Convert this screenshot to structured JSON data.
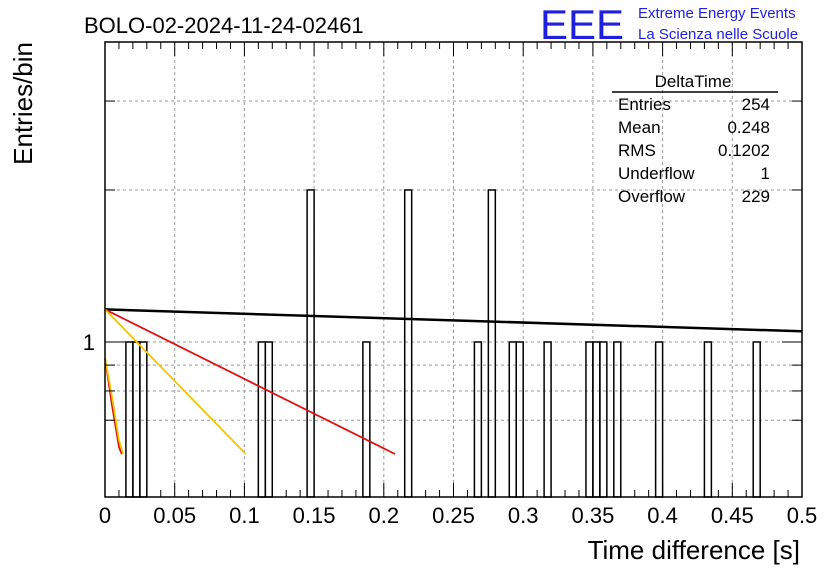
{
  "header": {
    "title": "BOLO-02-2024-11-24-02461",
    "logo_text": "EEE",
    "logo_line1": "Extreme Energy Events",
    "logo_line2": "La Scienza nelle Scuole"
  },
  "stats": {
    "title": "DeltaTime",
    "rows": [
      {
        "label": "Entries",
        "value": "254"
      },
      {
        "label": "Mean",
        "value": "0.248"
      },
      {
        "label": "RMS",
        "value": "0.1202"
      },
      {
        "label": "Underflow",
        "value": "1"
      },
      {
        "label": "Overflow",
        "value": "229"
      }
    ]
  },
  "chart_data": {
    "type": "bar",
    "title": "BOLO-02-2024-11-24-02461",
    "xlabel": "Time difference [s]",
    "ylabel": "Entries/bin",
    "xlim": [
      0,
      0.5
    ],
    "log_y": true,
    "grid": true,
    "x_ticks": [
      "0",
      "0.05",
      "0.1",
      "0.15",
      "0.2",
      "0.25",
      "0.3",
      "0.35",
      "0.4",
      "0.45",
      "0.5"
    ],
    "y_ticks": [
      "1"
    ],
    "bin_width": 0.005,
    "bins": [
      {
        "x": 0.015,
        "count": 1
      },
      {
        "x": 0.02,
        "count": 1
      },
      {
        "x": 0.025,
        "count": 1
      },
      {
        "x": 0.11,
        "count": 1
      },
      {
        "x": 0.115,
        "count": 1
      },
      {
        "x": 0.145,
        "count": 2
      },
      {
        "x": 0.185,
        "count": 1
      },
      {
        "x": 0.215,
        "count": 2
      },
      {
        "x": 0.265,
        "count": 1
      },
      {
        "x": 0.275,
        "count": 2
      },
      {
        "x": 0.29,
        "count": 1
      },
      {
        "x": 0.295,
        "count": 1
      },
      {
        "x": 0.315,
        "count": 1
      },
      {
        "x": 0.345,
        "count": 1
      },
      {
        "x": 0.35,
        "count": 1
      },
      {
        "x": 0.355,
        "count": 1
      },
      {
        "x": 0.365,
        "count": 1
      },
      {
        "x": 0.395,
        "count": 1
      },
      {
        "x": 0.43,
        "count": 1
      },
      {
        "x": 0.465,
        "count": 1
      }
    ],
    "fits": [
      {
        "color": "#000000",
        "points": [
          [
            0.0,
            1.16
          ],
          [
            0.5,
            1.05
          ]
        ]
      },
      {
        "color": "#e01010",
        "points": [
          [
            0.0,
            1.16
          ],
          [
            0.208,
            0.6
          ]
        ]
      },
      {
        "color": "#f5c400",
        "points": [
          [
            0.0,
            1.16
          ],
          [
            0.101,
            0.6
          ]
        ]
      },
      {
        "color": "#e01010",
        "points": [
          [
            0.0,
            0.93
          ],
          [
            0.005,
            0.75
          ],
          [
            0.01,
            0.62
          ],
          [
            0.012,
            0.6
          ]
        ]
      },
      {
        "color": "#f5c400",
        "points": [
          [
            0.0,
            0.93
          ],
          [
            0.005,
            0.78
          ],
          [
            0.01,
            0.64
          ],
          [
            0.013,
            0.6
          ]
        ]
      }
    ]
  }
}
